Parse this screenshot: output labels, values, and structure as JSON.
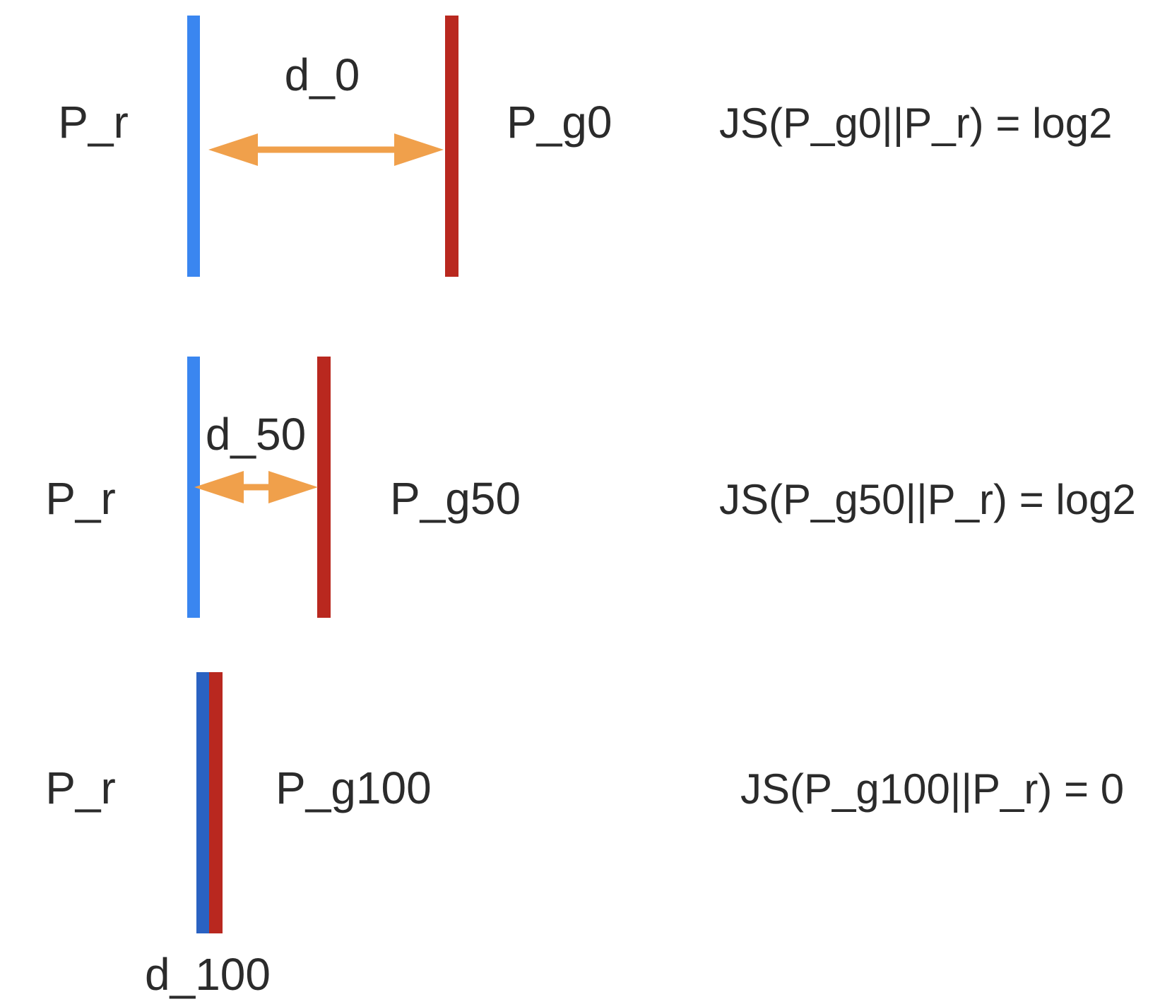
{
  "colors": {
    "real_distribution": "#3a86f0",
    "real_distribution_overlap": "#2a62c2",
    "generated_distribution": "#b9281f",
    "distance_arrow": "#f0a04b",
    "text": "#2b2b2b",
    "background": "#ffffff"
  },
  "rows": [
    {
      "real_label": "P_r",
      "gen_label": "P_g0",
      "distance_label": "d_0",
      "formula": "JS(P_g0||P_r) = log2"
    },
    {
      "real_label": "P_r",
      "gen_label": "P_g50",
      "distance_label": "d_50",
      "formula": "JS(P_g50||P_r) = log2"
    },
    {
      "real_label": "P_r",
      "gen_label": "P_g100",
      "distance_label": "d_100",
      "formula": "JS(P_g100||P_r) = 0"
    }
  ]
}
